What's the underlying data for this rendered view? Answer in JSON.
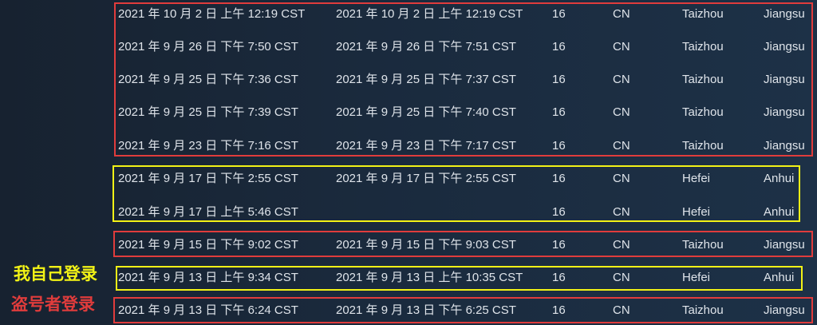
{
  "rows": [
    {
      "start": "2021 年 10 月 2 日 上午 12:19 CST",
      "end": "2021 年 10 月 2 日 上午 12:19 CST",
      "code": "16",
      "country": "CN",
      "city": "Taizhou",
      "region": "Jiangsu"
    },
    {
      "start": "2021 年 9 月 26 日 下午 7:50 CST",
      "end": "2021 年 9 月 26 日 下午 7:51 CST",
      "code": "16",
      "country": "CN",
      "city": "Taizhou",
      "region": "Jiangsu"
    },
    {
      "start": "2021 年 9 月 25 日 下午 7:36 CST",
      "end": "2021 年 9 月 25 日 下午 7:37 CST",
      "code": "16",
      "country": "CN",
      "city": "Taizhou",
      "region": "Jiangsu"
    },
    {
      "start": "2021 年 9 月 25 日 下午 7:39 CST",
      "end": "2021 年 9 月 25 日 下午 7:40 CST",
      "code": "16",
      "country": "CN",
      "city": "Taizhou",
      "region": "Jiangsu"
    },
    {
      "start": "2021 年 9 月 23 日 下午 7:16 CST",
      "end": "2021 年 9 月 23 日 下午 7:17 CST",
      "code": "16",
      "country": "CN",
      "city": "Taizhou",
      "region": "Jiangsu"
    },
    {
      "start": "2021 年 9 月 17 日 下午 2:55 CST",
      "end": "2021 年 9 月 17 日 下午 2:55 CST",
      "code": "16",
      "country": "CN",
      "city": "Hefei",
      "region": "Anhui"
    },
    {
      "start": "2021 年 9 月 17 日 上午 5:46 CST",
      "end": "",
      "code": "16",
      "country": "CN",
      "city": "Hefei",
      "region": "Anhui"
    },
    {
      "start": "2021 年 9 月 15 日 下午 9:02 CST",
      "end": "2021 年 9 月 15 日 下午 9:03 CST",
      "code": "16",
      "country": "CN",
      "city": "Taizhou",
      "region": "Jiangsu"
    },
    {
      "start": "2021 年 9 月 13 日 上午 9:34 CST",
      "end": "2021 年 9 月 13 日 上午 10:35 CST",
      "code": "16",
      "country": "CN",
      "city": "Hefei",
      "region": "Anhui"
    },
    {
      "start": "2021 年 9 月 13 日 下午 6:24 CST",
      "end": "2021 年 9 月 13 日 下午 6:25 CST",
      "code": "16",
      "country": "CN",
      "city": "Taizhou",
      "region": "Jiangsu"
    }
  ],
  "annotations": {
    "own_login": "我自己登录",
    "thief_login": "盗号者登录"
  },
  "colors": {
    "red_box": "#e03c3c",
    "yellow_box": "#f2f216",
    "own_login_text": "#f2f216",
    "thief_login_text": "#e03c3c"
  }
}
